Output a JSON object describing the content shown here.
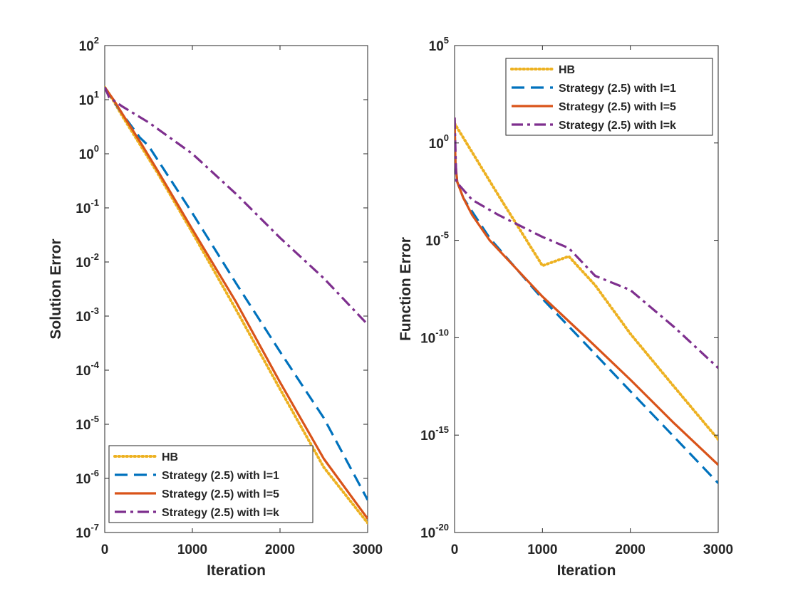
{
  "chart_data": [
    {
      "type": "line",
      "title": "",
      "xlabel": "Iteration",
      "ylabel": "Solution Error",
      "xlim": [
        0,
        3000
      ],
      "ylim": [
        1e-07,
        100
      ],
      "yscale": "log",
      "grid": false,
      "legend_position": "bottom-left",
      "x_ticks": [
        "0",
        "1000",
        "2000",
        "3000"
      ],
      "y_ticks": [
        {
          "base": "10",
          "exp": "-7",
          "value": 1e-07
        },
        {
          "base": "10",
          "exp": "-6",
          "value": 1e-06
        },
        {
          "base": "10",
          "exp": "-5",
          "value": 1e-05
        },
        {
          "base": "10",
          "exp": "-4",
          "value": 0.0001
        },
        {
          "base": "10",
          "exp": "-3",
          "value": 0.001
        },
        {
          "base": "10",
          "exp": "-2",
          "value": 0.01
        },
        {
          "base": "10",
          "exp": "-1",
          "value": 0.1
        },
        {
          "base": "10",
          "exp": "0",
          "value": 1
        },
        {
          "base": "10",
          "exp": "1",
          "value": 10
        },
        {
          "base": "10",
          "exp": "2",
          "value": 100
        }
      ],
      "series": [
        {
          "name": "HB",
          "color": "#EDB120",
          "style": "dotted",
          "points": [
            [
              0,
              17
            ],
            [
              100,
              9.5
            ],
            [
              200,
              5
            ],
            [
              400,
              1.5
            ],
            [
              600,
              0.45
            ],
            [
              1000,
              0.035
            ],
            [
              1500,
              0.0013
            ],
            [
              2000,
              4.5e-05
            ],
            [
              2500,
              1.6e-06
            ],
            [
              3000,
              1.5e-07
            ]
          ]
        },
        {
          "name": "Strategy (2.5) with l=1",
          "color": "#0072BD",
          "style": "dashed",
          "points": [
            [
              0,
              17
            ],
            [
              100,
              9.5
            ],
            [
              200,
              5.5
            ],
            [
              400,
              2
            ],
            [
              500,
              1.4
            ],
            [
              1000,
              0.08
            ],
            [
              1500,
              0.004
            ],
            [
              2000,
              0.00022
            ],
            [
              2500,
              1.3e-05
            ],
            [
              3000,
              4e-07
            ]
          ]
        },
        {
          "name": "Strategy (2.5) with l=5",
          "color": "#D95319",
          "style": "solid",
          "points": [
            [
              0,
              17
            ],
            [
              100,
              10
            ],
            [
              200,
              5.5
            ],
            [
              400,
              1.7
            ],
            [
              600,
              0.5
            ],
            [
              1000,
              0.04
            ],
            [
              1500,
              0.0018
            ],
            [
              2000,
              6e-05
            ],
            [
              2500,
              2.3e-06
            ],
            [
              3000,
              1.8e-07
            ]
          ]
        },
        {
          "name": "Strategy (2.5) with l=k",
          "color": "#7E2F8E",
          "style": "dashdot",
          "points": [
            [
              0,
              17
            ],
            [
              50,
              11
            ],
            [
              200,
              7.5
            ],
            [
              500,
              3.8
            ],
            [
              1000,
              1.0
            ],
            [
              1500,
              0.18
            ],
            [
              2000,
              0.028
            ],
            [
              2500,
              0.005
            ],
            [
              3000,
              0.0007
            ]
          ]
        }
      ]
    },
    {
      "type": "line",
      "title": "",
      "xlabel": "Iteration",
      "ylabel": "Function Error",
      "xlim": [
        0,
        3000
      ],
      "ylim": [
        1e-20,
        100000
      ],
      "yscale": "log",
      "grid": false,
      "legend_position": "top",
      "x_ticks": [
        "0",
        "1000",
        "2000",
        "3000"
      ],
      "y_ticks": [
        {
          "base": "10",
          "exp": "-20",
          "value": 1e-20
        },
        {
          "base": "10",
          "exp": "-15",
          "value": 1e-15
        },
        {
          "base": "10",
          "exp": "-10",
          "value": 1e-10
        },
        {
          "base": "10",
          "exp": "-5",
          "value": 1e-05
        },
        {
          "base": "10",
          "exp": "0",
          "value": 1
        },
        {
          "base": "10",
          "exp": "5",
          "value": 100000
        }
      ],
      "series": [
        {
          "name": "HB",
          "color": "#EDB120",
          "style": "dotted",
          "points": [
            [
              0,
              10
            ],
            [
              500,
              0.002
            ],
            [
              1000,
              5e-07
            ],
            [
              1300,
              1.5e-06
            ],
            [
              1600,
              5e-08
            ],
            [
              2000,
              1.6e-10
            ],
            [
              2500,
              3e-13
            ],
            [
              3000,
              6e-16
            ]
          ]
        },
        {
          "name": "Strategy (2.5) with l=1",
          "color": "#0072BD",
          "style": "dashed",
          "points": [
            [
              0,
              20
            ],
            [
              10,
              0.1
            ],
            [
              30,
              0.01
            ],
            [
              100,
              0.0015
            ],
            [
              200,
              0.0003
            ],
            [
              400,
              1.3e-05
            ],
            [
              1000,
              1e-08
            ],
            [
              1500,
              4.3e-11
            ],
            [
              2000,
              1.8e-13
            ],
            [
              2500,
              8e-16
            ],
            [
              3000,
              3.4e-18
            ]
          ]
        },
        {
          "name": "Strategy (2.5) with l=5",
          "color": "#D95319",
          "style": "solid",
          "points": [
            [
              0,
              20
            ],
            [
              10,
              0.1
            ],
            [
              30,
              0.01
            ],
            [
              100,
              0.0015
            ],
            [
              200,
              0.0002
            ],
            [
              400,
              1e-05
            ],
            [
              1000,
              1.3e-08
            ],
            [
              1500,
              1e-10
            ],
            [
              2000,
              7e-13
            ],
            [
              2500,
              4e-15
            ],
            [
              3000,
              3e-17
            ]
          ]
        },
        {
          "name": "Strategy (2.5) with l=k",
          "color": "#7E2F8E",
          "style": "dashdot",
          "points": [
            [
              0,
              20
            ],
            [
              20,
              0.01
            ],
            [
              200,
              0.0012
            ],
            [
              500,
              0.0002
            ],
            [
              1000,
              1.5e-05
            ],
            [
              1300,
              4e-06
            ],
            [
              1600,
              1.5e-07
            ],
            [
              2000,
              2.8e-08
            ],
            [
              2500,
              3.5e-10
            ],
            [
              3000,
              2.8e-12
            ]
          ]
        }
      ]
    }
  ]
}
